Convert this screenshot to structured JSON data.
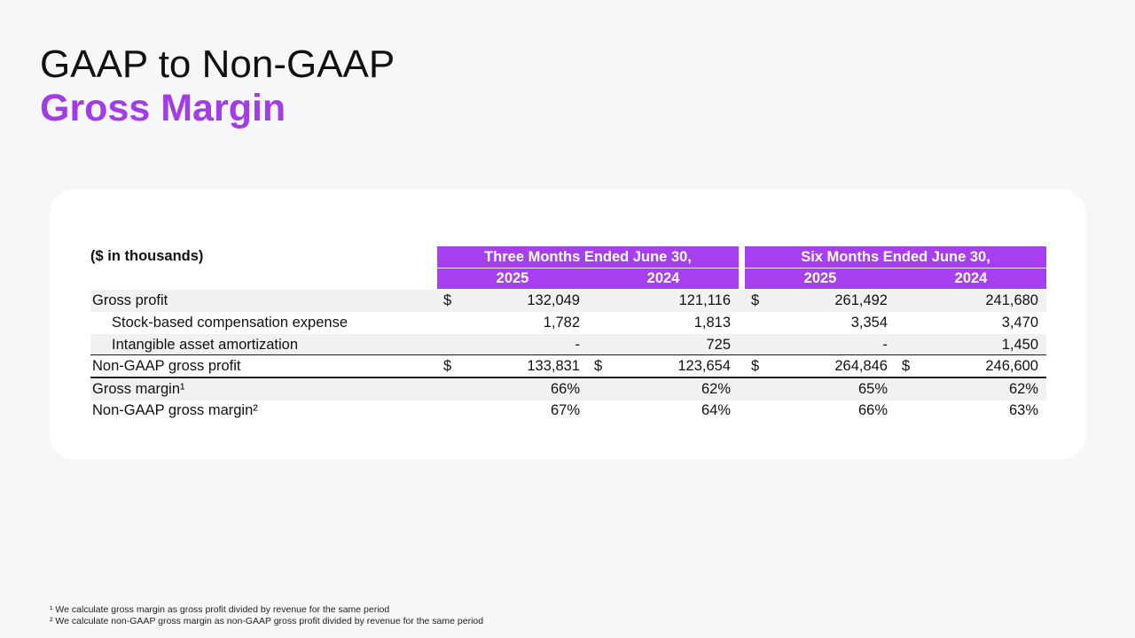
{
  "title": {
    "line1": "GAAP to Non-GAAP",
    "line2": "Gross Margin"
  },
  "table": {
    "units": "($ in thousands)",
    "groups": [
      {
        "title": "Three Months Ended June 30,",
        "years": [
          "2025",
          "2024"
        ]
      },
      {
        "title": "Six Months Ended June 30,",
        "years": [
          "2025",
          "2024"
        ]
      }
    ],
    "rows": [
      {
        "label": "Gross profit",
        "currency": [
          "$",
          "",
          "$",
          ""
        ],
        "values": [
          "132,049",
          "121,116",
          "261,492",
          "241,680"
        ]
      },
      {
        "label": "Stock-based compensation expense",
        "currency": [
          "",
          "",
          "",
          ""
        ],
        "values": [
          "1,782",
          "1,813",
          "3,354",
          "3,470"
        ]
      },
      {
        "label": "Intangible asset amortization",
        "currency": [
          "",
          "",
          "",
          ""
        ],
        "values": [
          "-",
          "725",
          "-",
          "1,450"
        ]
      },
      {
        "label": "Non-GAAP gross profit",
        "currency": [
          "$",
          "$",
          "$",
          "$"
        ],
        "values": [
          "133,831",
          "123,654",
          "264,846",
          "246,600"
        ]
      },
      {
        "label": "Gross margin¹",
        "currency": [
          "",
          "",
          "",
          ""
        ],
        "values": [
          "66%",
          "62%",
          "65%",
          "62%"
        ]
      },
      {
        "label": "Non-GAAP gross margin²",
        "currency": [
          "",
          "",
          "",
          ""
        ],
        "values": [
          "67%",
          "64%",
          "66%",
          "63%"
        ]
      }
    ]
  },
  "footnotes": [
    "¹ We calculate gross margin as gross profit divided by revenue for the same period",
    "² We calculate non-GAAP gross margin as non-GAAP gross profit divided by revenue for the same period"
  ]
}
